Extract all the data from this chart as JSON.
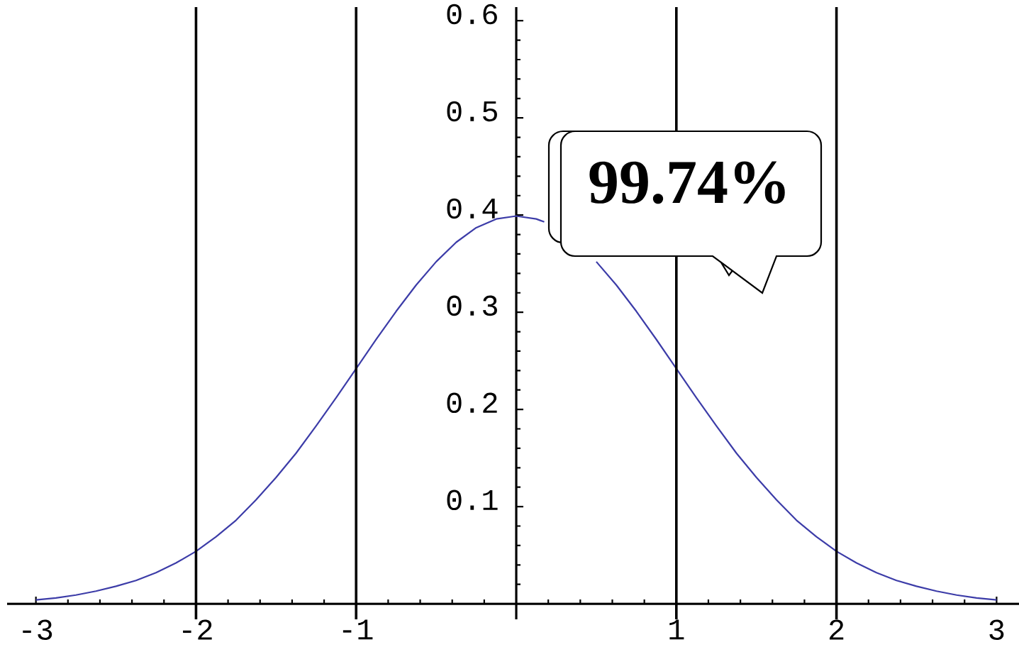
{
  "chart_data": {
    "type": "line",
    "x": [
      -3,
      -2.875,
      -2.75,
      -2.625,
      -2.5,
      -2.375,
      -2.25,
      -2.125,
      -2,
      -1.875,
      -1.75,
      -1.625,
      -1.5,
      -1.375,
      -1.25,
      -1.125,
      -1,
      -0.875,
      -0.75,
      -0.625,
      -0.5,
      -0.375,
      -0.25,
      -0.125,
      0,
      0.125,
      0.175,
      0.25,
      0.375,
      0.5,
      0.625,
      0.75,
      0.875,
      1,
      1.125,
      1.25,
      1.375,
      1.5,
      1.625,
      1.75,
      1.875,
      2,
      2.125,
      2.25,
      2.375,
      2.5,
      2.625,
      2.75,
      2.875,
      3
    ],
    "series": [
      {
        "color": "#3c3ca8",
        "values": [
          0.004,
          0.006,
          0.009,
          0.013,
          0.018,
          0.024,
          0.032,
          0.042,
          0.054,
          0.069,
          0.086,
          0.107,
          0.13,
          0.155,
          0.183,
          0.212,
          0.242,
          0.272,
          0.301,
          0.328,
          0.352,
          0.372,
          0.387,
          0.396,
          0.399,
          0.396,
          0.393,
          null,
          null,
          0.352,
          0.328,
          0.301,
          0.272,
          0.242,
          0.212,
          0.183,
          0.155,
          0.13,
          0.107,
          0.086,
          0.069,
          0.054,
          0.042,
          0.032,
          0.024,
          0.018,
          0.013,
          0.009,
          0.006,
          0.004
        ]
      }
    ],
    "xlim": [
      -3.18,
      3.14
    ],
    "ylim": [
      -0.016,
      0.614
    ],
    "xticks": [
      -3,
      -2,
      -1,
      {
        "value": 0,
        "label": null
      },
      1,
      2,
      3
    ],
    "yticks": [
      {
        "value": 0,
        "label": null
      },
      0.1,
      0.2,
      0.3,
      0.4,
      0.5,
      0.6
    ],
    "ref_lines": [
      {
        "axis": "x",
        "value": -2
      },
      {
        "axis": "x",
        "value": -1
      },
      {
        "axis": "x",
        "value": 1
      },
      {
        "axis": "x",
        "value": 2
      }
    ],
    "annotations": [
      "99.74%"
    ],
    "marker": "none",
    "line_style": "solid"
  }
}
